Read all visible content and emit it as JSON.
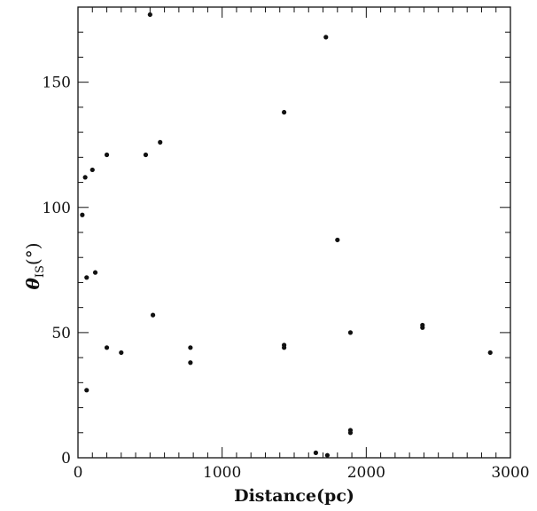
{
  "chart_data": {
    "type": "scatter",
    "title": "",
    "xlabel": "Distance(pc)",
    "ylabel_symbol": "θ",
    "ylabel_subscript": "IS",
    "ylabel_unit": "(°)",
    "xlim": [
      0,
      3000
    ],
    "ylim": [
      0,
      180
    ],
    "xticks": [
      0,
      1000,
      2000,
      3000
    ],
    "xtick_labels": [
      "0",
      "1000",
      "2000",
      "3000"
    ],
    "yticks": [
      0,
      50,
      100,
      150
    ],
    "ytick_labels": [
      "0",
      "50",
      "100",
      "150"
    ],
    "x_minor_step": 100,
    "y_minor_step": 10,
    "grid": false,
    "legend": "none",
    "marker_color": "#111111",
    "series": [
      {
        "points": [
          {
            "x": 30,
            "y": 97
          },
          {
            "x": 50,
            "y": 112
          },
          {
            "x": 60,
            "y": 72
          },
          {
            "x": 60,
            "y": 27
          },
          {
            "x": 100,
            "y": 115
          },
          {
            "x": 120,
            "y": 74
          },
          {
            "x": 200,
            "y": 121
          },
          {
            "x": 200,
            "y": 44
          },
          {
            "x": 300,
            "y": 42
          },
          {
            "x": 470,
            "y": 121
          },
          {
            "x": 500,
            "y": 177
          },
          {
            "x": 520,
            "y": 57
          },
          {
            "x": 570,
            "y": 126
          },
          {
            "x": 780,
            "y": 44
          },
          {
            "x": 780,
            "y": 38
          },
          {
            "x": 1430,
            "y": 138
          },
          {
            "x": 1430,
            "y": 45
          },
          {
            "x": 1430,
            "y": 44
          },
          {
            "x": 1650,
            "y": 2
          },
          {
            "x": 1720,
            "y": 168
          },
          {
            "x": 1730,
            "y": 1
          },
          {
            "x": 1800,
            "y": 87
          },
          {
            "x": 1890,
            "y": 50
          },
          {
            "x": 1890,
            "y": 11
          },
          {
            "x": 1890,
            "y": 10
          },
          {
            "x": 2390,
            "y": 53
          },
          {
            "x": 2390,
            "y": 52
          },
          {
            "x": 2860,
            "y": 42
          }
        ]
      }
    ]
  }
}
